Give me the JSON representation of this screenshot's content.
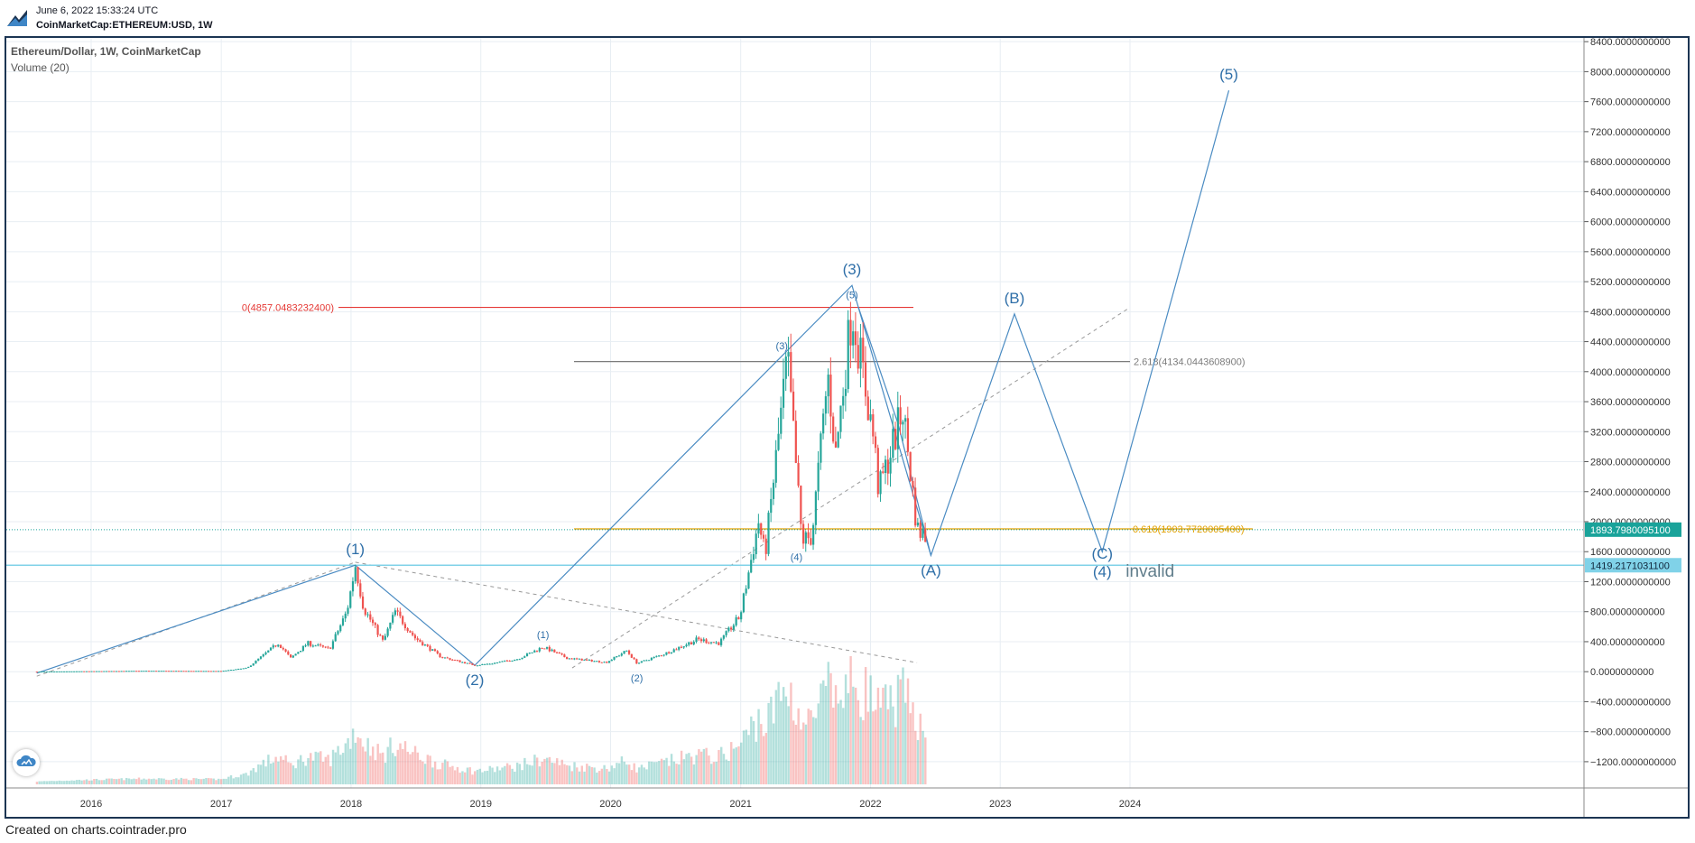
{
  "header": {
    "timestamp": "June 6, 2022 15:33:24 UTC",
    "symbol": "CoinMarketCap:ETHEREUM:USD, 1W"
  },
  "legend": {
    "title": "Ethereum/Dollar, 1W, CoinMarketCap",
    "volume": "Volume (20)"
  },
  "footer": {
    "credit": "Created on charts.cointrader.pro"
  },
  "icons": {
    "logo": "cointrader-logo-icon",
    "snapshot": "cloud-snapshot-icon"
  },
  "colors": {
    "up": "#26a69a",
    "down": "#ef5350",
    "wave": "#4a8bc2",
    "fib_ext": "#e53935",
    "fib_ret": "#e0a000",
    "fib_top": "#7c7c7c",
    "current_price_bg": "#1aa39a",
    "invalid_level_bg": "#80d2e8"
  },
  "chart_data": {
    "type": "line",
    "title": "Ethereum/Dollar, 1W, CoinMarketCap",
    "x_ticks": [
      "2016",
      "2017",
      "2018",
      "2019",
      "2020",
      "2021",
      "2022",
      "2023",
      "2024"
    ],
    "y_ticks": [
      "8400.0000000000",
      "8000.0000000000",
      "7600.0000000000",
      "7200.0000000000",
      "6800.0000000000",
      "6400.0000000000",
      "6000.0000000000",
      "5600.0000000000",
      "5200.0000000000",
      "4800.0000000000",
      "4400.0000000000",
      "4000.0000000000",
      "3600.0000000000",
      "3200.0000000000",
      "2800.0000000000",
      "2400.0000000000",
      "2000.0000000000",
      "1600.0000000000",
      "1200.0000000000",
      "800.0000000000",
      "400.0000000000",
      "0.0000000000",
      "−400.0000000000",
      "−800.0000000000",
      "−1200.0000000000"
    ],
    "ylim": [
      -1550,
      8450
    ],
    "grid": true,
    "price_series": {
      "name": "Ethereum/Dollar",
      "points": [
        [
          "2015-08-01",
          1
        ],
        [
          "2016-06-01",
          12
        ],
        [
          "2017-01-01",
          9
        ],
        [
          "2017-03-15",
          50
        ],
        [
          "2017-06-10",
          380
        ],
        [
          "2017-07-15",
          180
        ],
        [
          "2017-09-01",
          380
        ],
        [
          "2017-11-01",
          300
        ],
        [
          "2017-12-20",
          800
        ],
        [
          "2018-01-13",
          1420
        ],
        [
          "2018-02-05",
          850
        ],
        [
          "2018-04-01",
          400
        ],
        [
          "2018-05-05",
          800
        ],
        [
          "2018-06-30",
          450
        ],
        [
          "2018-09-10",
          200
        ],
        [
          "2018-12-15",
          85
        ],
        [
          "2019-02-01",
          110
        ],
        [
          "2019-04-15",
          170
        ],
        [
          "2019-06-25",
          330
        ],
        [
          "2019-09-01",
          180
        ],
        [
          "2019-12-20",
          125
        ],
        [
          "2020-02-15",
          280
        ],
        [
          "2020-03-15",
          110
        ],
        [
          "2020-06-01",
          240
        ],
        [
          "2020-09-01",
          430
        ],
        [
          "2020-11-01",
          380
        ],
        [
          "2020-12-30",
          740
        ],
        [
          "2021-02-20",
          2000
        ],
        [
          "2021-03-10",
          1550
        ],
        [
          "2021-05-12",
          4180
        ],
        [
          "2021-06-22",
          1750
        ],
        [
          "2021-07-20",
          1800
        ],
        [
          "2021-09-03",
          3950
        ],
        [
          "2021-09-25",
          2900
        ],
        [
          "2021-11-10",
          4860
        ],
        [
          "2022-01-10",
          3100
        ],
        [
          "2022-01-24",
          2400
        ],
        [
          "2022-04-02",
          3500
        ],
        [
          "2022-05-12",
          1900
        ],
        [
          "2022-06-06",
          1800
        ]
      ],
      "current_price": "1893.7980095100"
    },
    "volume_series": {
      "name": "Volume (20)"
    },
    "wave_count": [
      {
        "label": "(1)",
        "date": "2018-01-13",
        "price": 1420
      },
      {
        "label": "(2)",
        "date": "2018-12-15",
        "price": 85
      },
      {
        "label": "(3)",
        "date": "2021-11-10",
        "price": 5150
      },
      {
        "label": "(A)",
        "date": "2022-06-20",
        "price": 1550
      },
      {
        "label": "(B)",
        "date": "2023-02-10",
        "price": 4770
      },
      {
        "label": "(C)",
        "date": "2023-10-15",
        "price": 1600
      },
      {
        "label": "(4)",
        "date": "2023-10-15",
        "price": 1600
      },
      {
        "label": "(5)",
        "date": "2024-10-05",
        "price": 7750
      }
    ],
    "sub_waves": [
      {
        "label": "(1)",
        "date": "2019-06-25",
        "price": 330
      },
      {
        "label": "(2)",
        "date": "2020-03-15",
        "price": 110
      },
      {
        "label": "(3)",
        "date": "2021-05-12",
        "price": 4180
      },
      {
        "label": "(4)",
        "date": "2021-06-22",
        "price": 1750
      },
      {
        "label": "(5)",
        "date": "2021-11-10",
        "price": 4860
      }
    ],
    "fib_levels": [
      {
        "label": "2.618(4134.0443608900)",
        "price": 4134.04
      },
      {
        "label": "0(4857.0483232400)",
        "price": 4857.05
      },
      {
        "label": "0.618(1903.7720005400)",
        "price": 1903.77
      }
    ],
    "invalid_level": {
      "price": "1419.2171031100",
      "label": "invalid"
    }
  }
}
